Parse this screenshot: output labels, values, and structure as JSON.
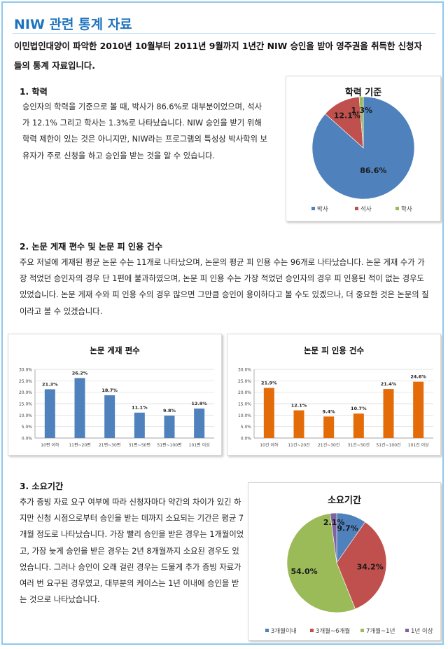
{
  "page": {
    "title": "NIW 관련 통계 자료",
    "intro": "이민법인대양이 파악한 2010년 10월부터 2011년 9월까지 1년간 NIW 승인을 받아 영주권을 취득한 신청자들의 통계 자료입니다."
  },
  "sections": [
    {
      "heading": "1. 학력",
      "body": "승인자의 학력을 기준으로 볼 때, 박사가 86.6%로 대부분이었으며, 석사가 12.1% 그리고 학사는 1.3%로 나타났습니다. NIW 승인을 받기 위해 학력 제한이 있는 것은 아니지만, NIW라는 프로그램의 특성상 박사학위 보유자가 주로 신청을 하고 승인을 받는 것을 알 수 있습니다."
    },
    {
      "heading": "2. 논문 게재 편수 및 논문 피 인용 건수",
      "body": "주요 저널에 게재된 평균 논문 수는 11개로 나타났으며, 논문의 평균 피 인용 수는 96개로 나타났습니다. 논문 게재 수가 가장 적었던 승인자의 경우 단 1편에 불과하였으며, 논문 피 인용 수는 가장 적었던 승인자의 경우 피 인용된 적이 없는 경우도 있었습니다. 논문 게재 수와 피 인용 수의 경우 많으면 그만큼 승인이 용이하다고 볼 수도 있겠으나, 더 중요한 것은 논문의 질이라고 볼 수 있겠습니다."
    },
    {
      "heading": "3. 소요기간",
      "body": "추가 증빙 자료 요구 여부에 따라 신청자마다 약간의 차이가 있긴 하지만 신청 시점으로부터 승인을 받는 데까지 소요되는 기간은 평균 7개월 정도로 나타났습니다. 가장 빨리 승인을 받은 경우는 1개월이었고, 가장 늦게 승인을 받은 경우는 2년 8개월까지 소요된 경우도 있었습니다. 그러나 승인이 오래 걸린 경우는 드물게 추가 증빙 자료가 여러 번 요구된 경우였고, 대부분의 케이스는 1년 이내에 승인을 받는 것으로 나타났습니다."
    }
  ],
  "colors": {
    "blue": "#4f81bd",
    "red": "#c0504d",
    "green": "#9bbb59",
    "purple": "#8064a2",
    "orange": "#e36c09",
    "title": "#1e73be"
  },
  "chart_data": [
    {
      "type": "pie",
      "title": "학력 기준",
      "categories": [
        "박사",
        "석사",
        "학사"
      ],
      "values": [
        86.6,
        12.1,
        1.3
      ],
      "labels": [
        "86.6%",
        "12.1%",
        "1.3%"
      ],
      "legend": "bottom"
    },
    {
      "type": "bar",
      "title": "논문 게재 편수",
      "categories": [
        "10편 이하",
        "11편~20편",
        "21편~30편",
        "31편~50편",
        "51편~100편",
        "101편 이상"
      ],
      "values": [
        21.3,
        26.2,
        18.7,
        11.1,
        9.8,
        12.9
      ],
      "labels": [
        "21.3%",
        "26.2%",
        "18.7%",
        "11.1%",
        "9.8%",
        "12.9%"
      ],
      "yticks": [
        "0.0%",
        "5.0%",
        "10.0%",
        "15.0%",
        "20.0%",
        "25.0%",
        "30.0%"
      ],
      "ylim": [
        0,
        30
      ],
      "grid": true
    },
    {
      "type": "bar",
      "title": "논문 피 인용 건수",
      "categories": [
        "10건 이하",
        "11건~20건",
        "21건~30건",
        "31건~50건",
        "51건~100건",
        "101건 이상"
      ],
      "values": [
        21.9,
        12.1,
        9.4,
        10.7,
        21.4,
        24.6
      ],
      "labels": [
        "21.9%",
        "12.1%",
        "9.4%",
        "10.7%",
        "21.4%",
        "24.6%"
      ],
      "yticks": [
        "0.0%",
        "5.0%",
        "10.0%",
        "15.0%",
        "20.0%",
        "25.0%",
        "30.0%"
      ],
      "ylim": [
        0,
        30
      ],
      "grid": true
    },
    {
      "type": "pie",
      "title": "소요기간",
      "categories": [
        "3개월이내",
        "3개월~6개월",
        "7개월~1년",
        "1년 이상"
      ],
      "values": [
        9.7,
        34.2,
        54.0,
        2.1
      ],
      "labels": [
        "9.7%",
        "34.2%",
        "54.0%",
        "2.1%"
      ],
      "legend": "bottom"
    }
  ]
}
